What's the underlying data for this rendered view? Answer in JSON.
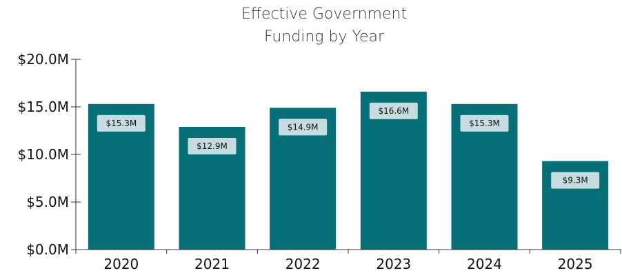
{
  "chart_data": {
    "type": "bar",
    "title_lines": [
      "Effective Government",
      "Funding by Year"
    ],
    "categories": [
      "2020",
      "2021",
      "2022",
      "2023",
      "2024",
      "2025"
    ],
    "values": [
      15.3,
      12.9,
      14.9,
      16.6,
      15.3,
      9.3
    ],
    "data_labels": [
      "$15.3M",
      "$12.9M",
      "$14.9M",
      "$16.6M",
      "$15.3M",
      "$9.3M"
    ],
    "ylim": [
      0,
      20
    ],
    "yticks": [
      0,
      5,
      10,
      15,
      20
    ],
    "ytick_labels": [
      "$0.0M",
      "$5.0M",
      "$10.0M",
      "$15.0M",
      "$20.0M"
    ],
    "grid": false,
    "colors": {
      "bar": "#066f78",
      "label_box": "#c5dce0",
      "axis": "#333333"
    }
  }
}
